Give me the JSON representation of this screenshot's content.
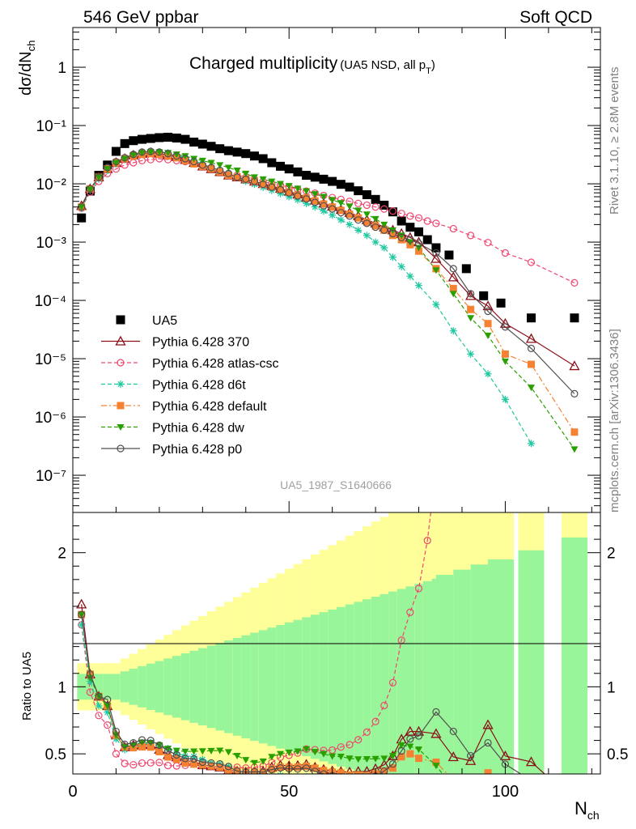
{
  "header": {
    "left": "546 GeV ppbar",
    "right": "Soft QCD"
  },
  "side_labels": {
    "right_top": "Rivet 3.1.10, ≥ 2.8M events",
    "right_bottom": "mcplots.cern.ch [arXiv:1306.3436]"
  },
  "chart_data": {
    "type": "scatter",
    "title_main": "Charged multiplicity",
    "title_sub": "(UA5 NSD, all p",
    "title_sub_subscript": "T",
    "title_sub_close": ")",
    "analysis_id": "UA5_1987_S1640666",
    "ylabel_main_prefix": "dσ/dN",
    "ylabel_main_subscript": "ch",
    "ylabel_ratio": "Ratio to UA5",
    "xlabel": "N",
    "xlabel_subscript": "ch",
    "y_scale_main": "log",
    "ylim_main": [
      2.3e-08,
      4.8
    ],
    "ylim_ratio": [
      0.35,
      2.3
    ],
    "xlim": [
      0,
      122
    ],
    "x_ticks": [
      "0",
      "50",
      "100"
    ],
    "y_ticks_main": [
      "10⁻⁷",
      "10⁻⁶",
      "10⁻⁵",
      "10⁻⁴",
      "10⁻³",
      "10⁻²",
      "10⁻¹",
      "1"
    ],
    "y_ticks_ratio": [
      "0.5",
      "1",
      "2"
    ],
    "legend_position": "lower-left",
    "grid": false,
    "reference_band_colors": {
      "inner": "#99f599",
      "outer": "#ffff99"
    },
    "series": [
      {
        "name": "UA5",
        "color": "#000000",
        "marker": "square",
        "line": "none",
        "x": [
          2,
          4,
          6,
          8,
          10,
          12,
          14,
          16,
          18,
          20,
          22,
          24,
          26,
          28,
          30,
          32,
          34,
          36,
          38,
          40,
          42,
          44,
          46,
          48,
          50,
          52,
          54,
          56,
          58,
          60,
          62,
          64,
          66,
          68,
          70,
          72,
          74,
          76,
          78,
          80,
          82,
          84,
          87,
          91,
          95,
          99,
          106,
          116
        ],
        "y": [
          0.0026,
          0.0075,
          0.014,
          0.021,
          0.036,
          0.049,
          0.055,
          0.058,
          0.06,
          0.062,
          0.063,
          0.061,
          0.058,
          0.052,
          0.048,
          0.044,
          0.04,
          0.037,
          0.035,
          0.033,
          0.03,
          0.027,
          0.023,
          0.02,
          0.018,
          0.016,
          0.014,
          0.013,
          0.012,
          0.011,
          0.0098,
          0.0088,
          0.0076,
          0.0065,
          0.0054,
          0.0043,
          0.0033,
          0.0023,
          0.0018,
          0.0015,
          0.0011,
          0.0008,
          0.0006,
          0.00035,
          0.00012,
          9e-05,
          5e-05,
          5e-05
        ]
      },
      {
        "name": "Pythia 6.428 370",
        "color": "#8b0f19",
        "marker": "triangle-open",
        "line": "solid",
        "x": [
          2,
          4,
          6,
          8,
          10,
          12,
          14,
          16,
          18,
          20,
          22,
          24,
          26,
          28,
          30,
          32,
          34,
          36,
          38,
          40,
          42,
          44,
          46,
          48,
          50,
          52,
          54,
          56,
          58,
          60,
          62,
          64,
          66,
          68,
          70,
          72,
          74,
          76,
          78,
          80,
          84,
          88,
          92,
          96,
          100,
          106,
          116
        ],
        "y": [
          0.0042,
          0.0082,
          0.013,
          0.018,
          0.023,
          0.027,
          0.031,
          0.033,
          0.034,
          0.033,
          0.031,
          0.029,
          0.026,
          0.023,
          0.02,
          0.018,
          0.016,
          0.014,
          0.013,
          0.012,
          0.011,
          0.01,
          0.0092,
          0.0083,
          0.0074,
          0.0066,
          0.0059,
          0.0052,
          0.0046,
          0.0041,
          0.0036,
          0.0032,
          0.0028,
          0.0024,
          0.0021,
          0.0018,
          0.0016,
          0.0014,
          0.0012,
          0.001,
          0.00052,
          0.00025,
          0.00012,
          8e-05,
          4e-05,
          2.2e-05,
          7.5e-06
        ]
      },
      {
        "name": "Pythia 6.428 atlas-csc",
        "color": "#f0466e",
        "marker": "circle-open",
        "line": "dashed",
        "x": [
          2,
          4,
          6,
          8,
          10,
          12,
          14,
          16,
          18,
          20,
          22,
          24,
          26,
          28,
          30,
          32,
          34,
          36,
          38,
          40,
          42,
          44,
          46,
          48,
          50,
          52,
          54,
          56,
          58,
          60,
          62,
          64,
          66,
          68,
          70,
          72,
          74,
          76,
          78,
          80,
          82,
          84,
          88,
          92,
          96,
          100,
          106,
          116
        ],
        "y": [
          0.0038,
          0.0072,
          0.011,
          0.015,
          0.018,
          0.021,
          0.023,
          0.025,
          0.026,
          0.027,
          0.026,
          0.025,
          0.024,
          0.022,
          0.02,
          0.018,
          0.016,
          0.015,
          0.014,
          0.013,
          0.012,
          0.011,
          0.01,
          0.0095,
          0.0088,
          0.0081,
          0.0075,
          0.0069,
          0.0063,
          0.0058,
          0.0054,
          0.005,
          0.0046,
          0.0043,
          0.004,
          0.0037,
          0.0034,
          0.0031,
          0.0028,
          0.0026,
          0.0023,
          0.0021,
          0.0017,
          0.0013,
          0.00098,
          0.00065,
          0.00045,
          0.0002
        ]
      },
      {
        "name": "Pythia 6.428 d6t",
        "color": "#1ec8a0",
        "marker": "asterisk",
        "line": "dashed",
        "x": [
          2,
          4,
          6,
          8,
          10,
          12,
          14,
          16,
          18,
          20,
          22,
          24,
          26,
          28,
          30,
          32,
          34,
          36,
          38,
          40,
          42,
          44,
          46,
          48,
          50,
          52,
          54,
          56,
          58,
          60,
          62,
          64,
          66,
          68,
          70,
          72,
          74,
          76,
          78,
          80,
          84,
          88,
          92,
          96,
          100,
          106
        ],
        "y": [
          0.0038,
          0.0078,
          0.012,
          0.017,
          0.022,
          0.026,
          0.03,
          0.033,
          0.035,
          0.035,
          0.034,
          0.031,
          0.028,
          0.025,
          0.022,
          0.019,
          0.017,
          0.015,
          0.013,
          0.011,
          0.0098,
          0.0087,
          0.0077,
          0.0068,
          0.006,
          0.0053,
          0.0046,
          0.004,
          0.0034,
          0.0029,
          0.0024,
          0.002,
          0.0016,
          0.0013,
          0.001,
          0.0008,
          0.00055,
          0.00038,
          0.00026,
          0.00018,
          8.5e-05,
          3e-05,
          1.2e-05,
          5.5e-06,
          2e-06,
          3.5e-07
        ]
      },
      {
        "name": "Pythia 6.428 default",
        "color": "#f58232",
        "marker": "square",
        "line": "dashdot",
        "x": [
          2,
          4,
          6,
          8,
          10,
          12,
          14,
          16,
          18,
          20,
          22,
          24,
          26,
          28,
          30,
          32,
          34,
          36,
          38,
          40,
          42,
          44,
          46,
          48,
          50,
          52,
          54,
          56,
          58,
          60,
          62,
          64,
          66,
          68,
          70,
          72,
          74,
          76,
          78,
          80,
          84,
          88,
          92,
          96,
          100,
          106,
          116
        ],
        "y": [
          0.004,
          0.0082,
          0.013,
          0.018,
          0.023,
          0.027,
          0.03,
          0.032,
          0.033,
          0.032,
          0.03,
          0.028,
          0.025,
          0.022,
          0.02,
          0.018,
          0.016,
          0.014,
          0.013,
          0.012,
          0.011,
          0.0098,
          0.0089,
          0.008,
          0.0072,
          0.0064,
          0.0057,
          0.0051,
          0.0045,
          0.004,
          0.0035,
          0.003,
          0.0026,
          0.0022,
          0.0019,
          0.0016,
          0.0013,
          0.0011,
          0.0009,
          0.0007,
          0.00035,
          0.00016,
          7e-05,
          4e-05,
          1.2e-05,
          8e-06,
          5.5e-07
        ]
      },
      {
        "name": "Pythia 6.428 dw",
        "color": "#28a000",
        "marker": "triangle-down",
        "line": "dashed",
        "x": [
          2,
          4,
          6,
          8,
          10,
          12,
          14,
          16,
          18,
          20,
          22,
          24,
          26,
          28,
          30,
          32,
          34,
          36,
          38,
          40,
          42,
          44,
          46,
          48,
          50,
          52,
          54,
          56,
          58,
          60,
          62,
          64,
          66,
          68,
          70,
          72,
          74,
          76,
          78,
          80,
          84,
          88,
          92,
          96,
          100,
          106,
          116
        ],
        "y": [
          0.004,
          0.008,
          0.013,
          0.018,
          0.023,
          0.027,
          0.031,
          0.034,
          0.035,
          0.035,
          0.034,
          0.032,
          0.03,
          0.027,
          0.025,
          0.023,
          0.021,
          0.019,
          0.017,
          0.015,
          0.013,
          0.012,
          0.011,
          0.01,
          0.0092,
          0.0083,
          0.0075,
          0.0067,
          0.006,
          0.0053,
          0.0047,
          0.0041,
          0.0035,
          0.003,
          0.0025,
          0.002,
          0.0016,
          0.0013,
          0.001,
          0.0008,
          0.00033,
          0.00013,
          5e-05,
          2.5e-05,
          9e-06,
          3.2e-06,
          2.8e-07
        ]
      },
      {
        "name": "Pythia 6.428 p0",
        "color": "#505050",
        "marker": "circle-open",
        "line": "solid",
        "x": [
          2,
          4,
          6,
          8,
          10,
          12,
          14,
          16,
          18,
          20,
          22,
          24,
          26,
          28,
          30,
          32,
          34,
          36,
          38,
          40,
          42,
          44,
          46,
          48,
          50,
          52,
          54,
          56,
          58,
          60,
          62,
          64,
          66,
          68,
          70,
          72,
          74,
          76,
          78,
          80,
          84,
          88,
          92,
          96,
          100,
          106,
          116
        ],
        "y": [
          0.004,
          0.0082,
          0.013,
          0.019,
          0.024,
          0.028,
          0.032,
          0.035,
          0.036,
          0.035,
          0.033,
          0.03,
          0.027,
          0.024,
          0.021,
          0.019,
          0.017,
          0.015,
          0.013,
          0.012,
          0.011,
          0.0098,
          0.0088,
          0.0079,
          0.007,
          0.0062,
          0.0055,
          0.0048,
          0.0042,
          0.0037,
          0.0032,
          0.0028,
          0.0024,
          0.0021,
          0.0018,
          0.0016,
          0.0014,
          0.0012,
          0.0011,
          0.00095,
          0.00065,
          0.00035,
          0.00013,
          6.5e-05,
          3.5e-05,
          1.5e-05,
          2.5e-06
        ]
      }
    ]
  }
}
